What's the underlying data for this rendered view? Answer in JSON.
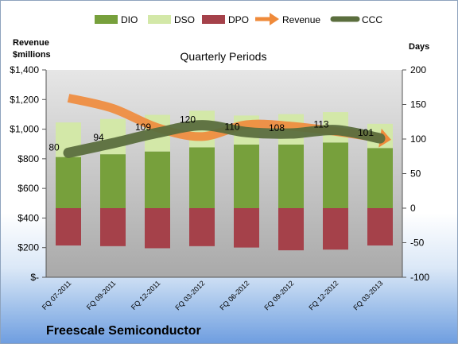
{
  "chart_data": {
    "type": "bar",
    "title": "Quarterly Periods",
    "company": "Freescale Semiconductor",
    "left_axis_title_line1": "Revenue",
    "left_axis_title_line2": "$millions",
    "right_axis_title": "Days",
    "categories": [
      "FQ 07-2011",
      "FQ 09-2011",
      "FQ 12-2011",
      "FQ 03-2012",
      "FQ 06-2012",
      "FQ 09-2012",
      "FQ 12-2012",
      "FQ 03-2013"
    ],
    "left_ticks": [
      "$1,400",
      "$1,200",
      "$1,000",
      "$800",
      "$600",
      "$400",
      "$200",
      "$-"
    ],
    "left_ylim": [
      0,
      1400
    ],
    "right_ticks": [
      "200",
      "150",
      "100",
      "50",
      "0",
      "-50",
      "-100"
    ],
    "right_ylim": [
      -100,
      200
    ],
    "series": [
      {
        "name": "DIO",
        "kind": "bar",
        "color": "#77a03c",
        "values": [
          74,
          78,
          82,
          88,
          92,
          92,
          95,
          87
        ]
      },
      {
        "name": "DSO",
        "kind": "bar",
        "color": "#d3e8a8",
        "values": [
          50,
          51,
          53,
          53,
          42,
          44,
          44,
          35
        ]
      },
      {
        "name": "DPO",
        "kind": "bar",
        "color": "#a5414a",
        "values": [
          -54,
          -55,
          -58,
          -55,
          -57,
          -61,
          -60,
          -54
        ]
      },
      {
        "name": "Revenue",
        "kind": "line",
        "axis": "left",
        "color": "#ef8a3a",
        "values": [
          1210,
          1140,
          1010,
          950,
          1030,
          1020,
          985,
          940
        ]
      },
      {
        "name": "CCC",
        "kind": "line",
        "axis": "right",
        "color": "#5b6e3e",
        "values": [
          80,
          94,
          109,
          120,
          110,
          108,
          113,
          101
        ]
      }
    ],
    "data_labels": [
      "80",
      "94",
      "109",
      "120",
      "110",
      "108",
      "113",
      "101"
    ],
    "grid": false,
    "legend_position": "top"
  }
}
